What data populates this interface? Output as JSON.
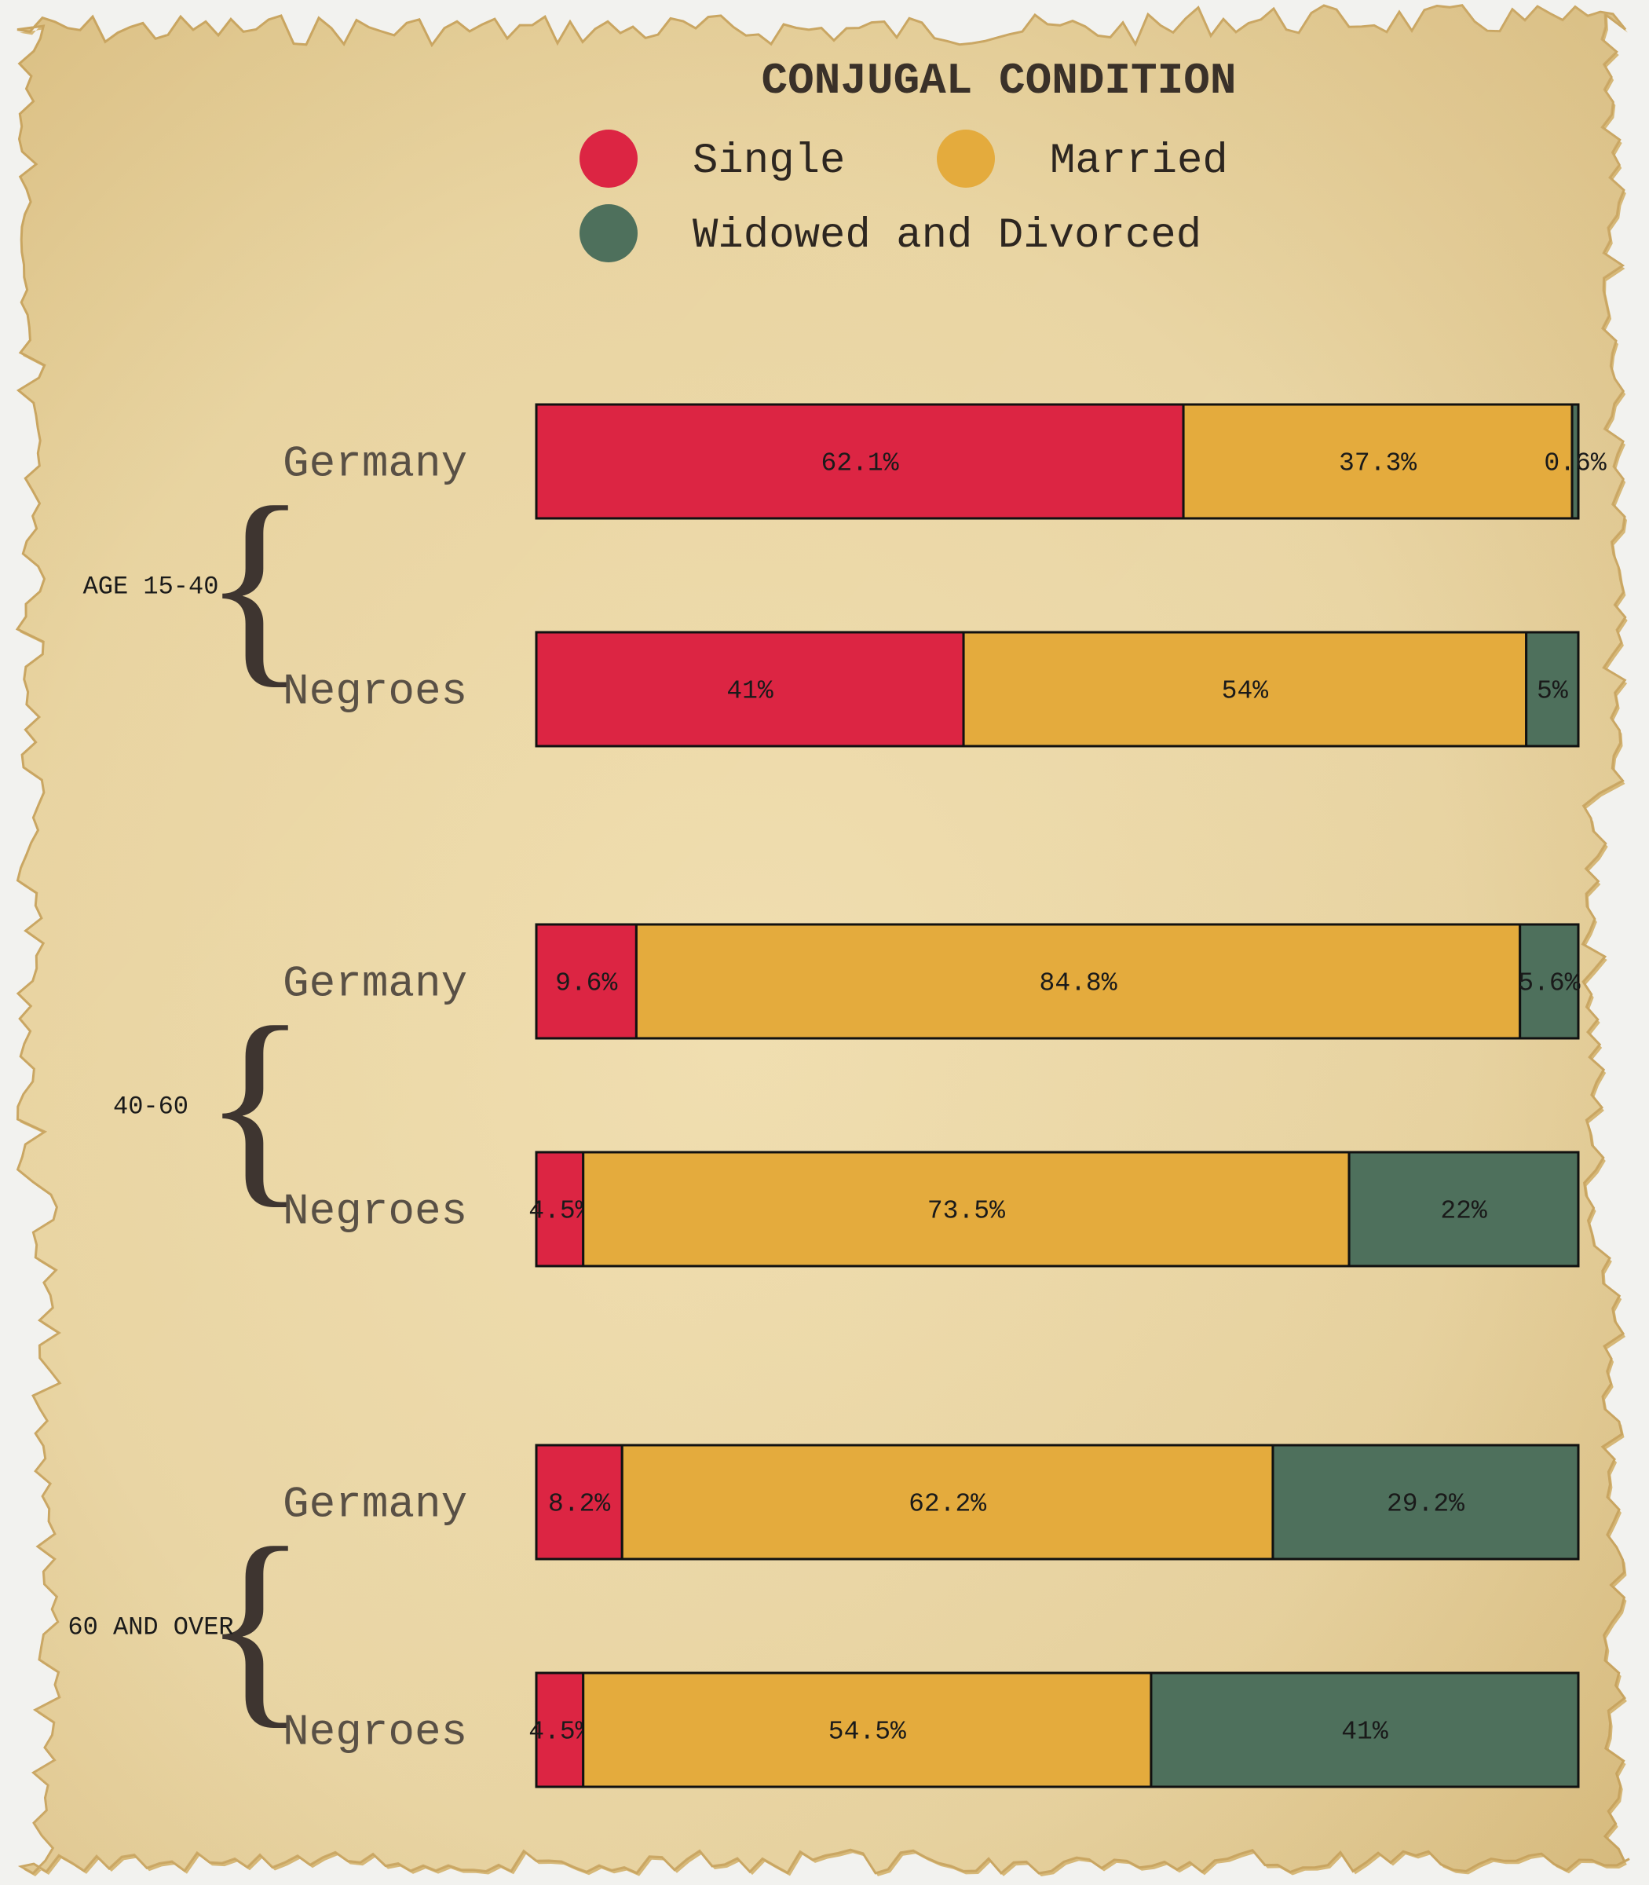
{
  "chart_data": {
    "type": "bar",
    "orientation": "horizontal",
    "stacked": true,
    "percent": true,
    "title": "CONJUGAL CONDITION",
    "legend_placement": "top-right",
    "xlim": [
      0,
      100
    ],
    "series": [
      {
        "name": "Single",
        "color": "#dc2543"
      },
      {
        "name": "Married",
        "color": "#e4ab3d"
      },
      {
        "name": "Widowed and Divorced",
        "color": "#4e705c"
      }
    ],
    "groups": [
      {
        "label": "AGE 15-40",
        "bars": [
          {
            "label": "Germany",
            "values": [
              62.1,
              37.3,
              0.6
            ],
            "value_labels": [
              "62.1%",
              "37.3%",
              "0.6%"
            ]
          },
          {
            "label": "Negroes",
            "values": [
              41,
              54,
              5
            ],
            "value_labels": [
              "41%",
              "54%",
              "5%"
            ]
          }
        ]
      },
      {
        "label": "40-60",
        "bars": [
          {
            "label": "Germany",
            "values": [
              9.6,
              84.8,
              5.6
            ],
            "value_labels": [
              "9.6%",
              "84.8%",
              "5.6%"
            ]
          },
          {
            "label": "Negroes",
            "values": [
              4.5,
              73.5,
              22
            ],
            "value_labels": [
              "4.5%",
              "73.5%",
              "22%"
            ]
          }
        ]
      },
      {
        "label": "60 AND OVER",
        "bars": [
          {
            "label": "Germany",
            "values": [
              8.2,
              62.2,
              29.2
            ],
            "value_labels": [
              "8.2%",
              "62.2%",
              "29.2%"
            ]
          },
          {
            "label": "Negroes",
            "values": [
              4.5,
              54.5,
              41
            ],
            "value_labels": [
              "4.5%",
              "54.5%",
              "41%"
            ]
          }
        ]
      }
    ]
  },
  "colors": {
    "paper_light": "#efdcab",
    "paper_mid": "#e6cf97",
    "paper_dark": "#d6b878",
    "page_background": "#f2f2ef",
    "label_text": "#595045",
    "dark_text": "#1a1a1a",
    "brace": "#3e3530"
  }
}
